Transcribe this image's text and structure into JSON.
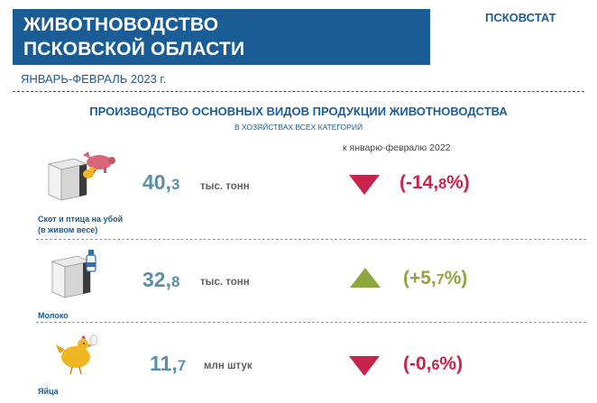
{
  "header": {
    "title_line1": "ЖИВОТНОВОДСТВО",
    "title_line2": "ПСКОВСКОЙ ОБЛАСТИ",
    "organization": "ПСКОВСТАТ",
    "period": "ЯНВАРЬ-ФЕВРАЛЬ 2023 г."
  },
  "section": {
    "heading": "ПРОИЗВОДСТВО ОСНОВНЫХ ВИДОВ ПРОДУКЦИИ ЖИВОТНОВОДСТВА",
    "subheading": "В ХОЗЯЙСТВАХ ВСЕХ КАТЕГОРИЙ",
    "comparison_label": "к январю-февралю 2022"
  },
  "colors": {
    "brand": "#1a5d96",
    "decrease": "#c8234a",
    "increase": "#8ea73d",
    "value": "#5a8fa8"
  },
  "items": [
    {
      "label_line1": "Скот и птица на убой",
      "label_line2": "(в живом весе)",
      "value_int": "40,",
      "value_dec": "3",
      "unit": "тыс. тонн",
      "change_open": "(-14,",
      "change_dec": "8",
      "change_close": "%)",
      "direction": "down",
      "icon": "cube-with-pig-icon"
    },
    {
      "label_line1": "Молоко",
      "value_int": "32,",
      "value_dec": "8",
      "unit": "тыс. тонн",
      "change_open": "(+5,",
      "change_dec": "7",
      "change_close": "%)",
      "direction": "up",
      "icon": "cube-with-milk-bottle-icon"
    },
    {
      "label_line1": "Яйца",
      "value_int": "11,",
      "value_dec": "7",
      "unit": "млн штук",
      "change_open": "(-0,",
      "change_dec": "6",
      "change_close": "%)",
      "direction": "down",
      "icon": "hen-with-egg-icon"
    }
  ]
}
